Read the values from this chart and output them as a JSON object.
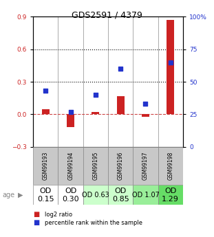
{
  "title": "GDS2591 / 4379",
  "samples": [
    "GSM99193",
    "GSM99194",
    "GSM99195",
    "GSM99196",
    "GSM99197",
    "GSM99198"
  ],
  "log2_ratio": [
    0.05,
    -0.12,
    0.02,
    0.17,
    -0.02,
    0.87
  ],
  "percentile_rank": [
    43,
    27,
    40,
    60,
    33,
    65
  ],
  "age_labels_line1": [
    "OD",
    "OD",
    "OD 0.63",
    "OD",
    "OD 1.07",
    "OD"
  ],
  "age_labels_line2": [
    "0.15",
    "0.30",
    "",
    "0.85",
    "",
    "1.29"
  ],
  "age_colors": [
    "#ffffff",
    "#ffffff",
    "#ccffcc",
    "#ccffcc",
    "#99ee99",
    "#66dd66"
  ],
  "age_fontsize_large": [
    8,
    8,
    7,
    8,
    7,
    8
  ],
  "ylim_left": [
    -0.3,
    0.9
  ],
  "ylim_right": [
    0,
    100
  ],
  "yticks_left": [
    -0.3,
    0.0,
    0.3,
    0.6,
    0.9
  ],
  "yticks_right": [
    0,
    25,
    50,
    75,
    100
  ],
  "hlines": [
    0.3,
    0.6
  ],
  "bar_color_red": "#cc2222",
  "bar_color_blue": "#2233cc",
  "dashed_line_color": "#cc4444",
  "background_plot": "#ffffff",
  "background_fig": "#ffffff",
  "tick_color_left": "#cc2222",
  "tick_color_right": "#2233cc",
  "cell_bg_sample": "#c8c8c8",
  "cell_border": "#888888"
}
